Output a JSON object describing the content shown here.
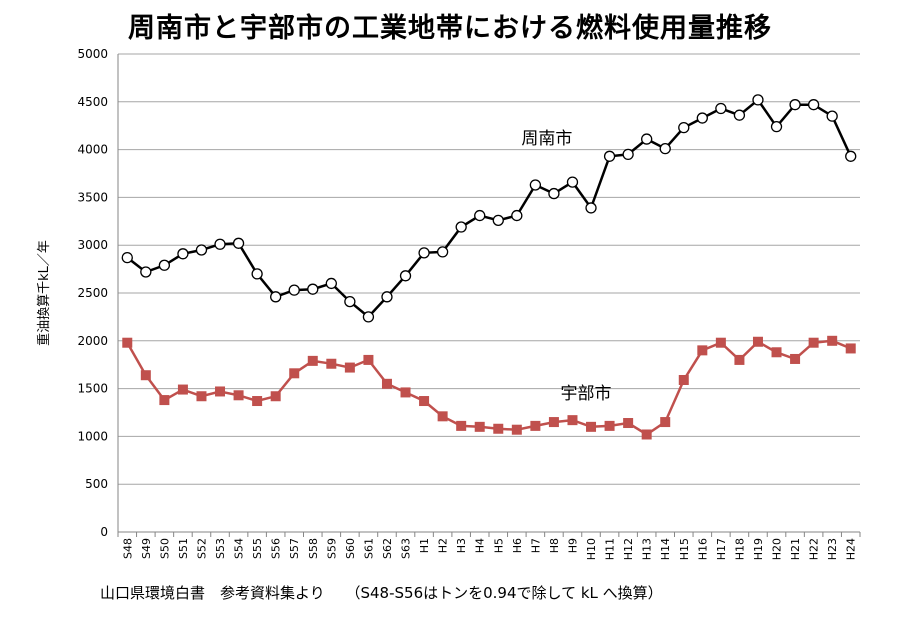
{
  "title": "周南市と宇部市の工業地帯における燃料使用量推移",
  "footer": {
    "source": "山口県環境白書　参考資料集より",
    "note": "（S48-S56はトンを0.94で除して kL へ換算）"
  },
  "chart_data": {
    "type": "line",
    "ylabel": "重油換算千kL／年",
    "ylim": [
      0,
      5000
    ],
    "yticks": [
      0,
      500,
      1000,
      1500,
      2000,
      2500,
      3000,
      3500,
      4000,
      4500,
      5000
    ],
    "grid": "horizontal",
    "categories": [
      "S48",
      "S49",
      "S50",
      "S51",
      "S52",
      "S53",
      "S54",
      "S55",
      "S56",
      "S57",
      "S58",
      "S59",
      "S60",
      "S61",
      "S62",
      "S63",
      "H1",
      "H2",
      "H3",
      "H4",
      "H5",
      "H6",
      "H7",
      "H8",
      "H9",
      "H10",
      "H11",
      "H12",
      "H13",
      "H14",
      "H15",
      "H16",
      "H17",
      "H18",
      "H19",
      "H20",
      "H21",
      "H22",
      "H23",
      "H24"
    ],
    "series": [
      {
        "name": "周南市",
        "color": "#000000",
        "marker": "circle-open",
        "values": [
          2870,
          2720,
          2790,
          2910,
          2950,
          3010,
          3020,
          2700,
          2460,
          2530,
          2540,
          2600,
          2410,
          2250,
          2460,
          2680,
          2920,
          2930,
          3190,
          3310,
          3260,
          3310,
          3630,
          3540,
          3660,
          3390,
          3930,
          3950,
          4110,
          4010,
          4230,
          4330,
          4430,
          4360,
          4520,
          4240,
          4470,
          4470,
          4350,
          3930
        ]
      },
      {
        "name": "宇部市",
        "color": "#c0504d",
        "marker": "square",
        "values": [
          1980,
          1640,
          1380,
          1490,
          1420,
          1470,
          1430,
          1370,
          1420,
          1660,
          1790,
          1760,
          1720,
          1800,
          1550,
          1460,
          1370,
          1210,
          1110,
          1100,
          1080,
          1070,
          1110,
          1150,
          1170,
          1100,
          1110,
          1140,
          1020,
          1150,
          1590,
          1900,
          1980,
          1800,
          1990,
          1880,
          1810,
          1980,
          2000,
          1920
        ]
      }
    ]
  }
}
